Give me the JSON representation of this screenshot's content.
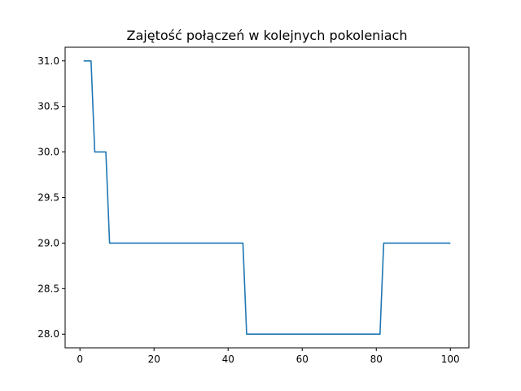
{
  "chart_data": {
    "type": "line",
    "title": "Zajętość połączeń w kolejnych pokoleniach",
    "xlabel": "",
    "ylabel": "",
    "xlim": [
      -4,
      105
    ],
    "ylim": [
      27.85,
      31.15
    ],
    "x_ticks": [
      0,
      20,
      40,
      60,
      80,
      100
    ],
    "y_ticks": [
      28.0,
      28.5,
      29.0,
      29.5,
      30.0,
      30.5,
      31.0
    ],
    "x_tick_labels": [
      "0",
      "20",
      "40",
      "60",
      "80",
      "100"
    ],
    "y_tick_labels": [
      "28.0",
      "28.5",
      "29.0",
      "29.5",
      "30.0",
      "30.5",
      "31.0"
    ],
    "grid": false,
    "line_color": "#1f77b4",
    "series": [
      {
        "x": [
          1,
          2,
          3,
          4,
          5,
          6,
          7,
          8,
          9,
          10,
          11,
          12,
          13,
          14,
          15,
          16,
          17,
          18,
          19,
          20,
          21,
          22,
          23,
          24,
          25,
          26,
          27,
          28,
          29,
          30,
          31,
          32,
          33,
          34,
          35,
          36,
          37,
          38,
          39,
          40,
          41,
          42,
          43,
          44,
          45,
          46,
          47,
          48,
          49,
          50,
          51,
          52,
          53,
          54,
          55,
          56,
          57,
          58,
          59,
          60,
          61,
          62,
          63,
          64,
          65,
          66,
          67,
          68,
          69,
          70,
          71,
          72,
          73,
          74,
          75,
          76,
          77,
          78,
          79,
          80,
          81,
          82,
          83,
          84,
          85,
          86,
          87,
          88,
          89,
          90,
          91,
          92,
          93,
          94,
          95,
          96,
          97,
          98,
          99,
          100
        ],
        "y": [
          31,
          31,
          31,
          30,
          30,
          30,
          30,
          29,
          29,
          29,
          29,
          29,
          29,
          29,
          29,
          29,
          29,
          29,
          29,
          29,
          29,
          29,
          29,
          29,
          29,
          29,
          29,
          29,
          29,
          29,
          29,
          29,
          29,
          29,
          29,
          29,
          29,
          29,
          29,
          29,
          29,
          29,
          29,
          29,
          28,
          28,
          28,
          28,
          28,
          28,
          28,
          28,
          28,
          28,
          28,
          28,
          28,
          28,
          28,
          28,
          28,
          28,
          28,
          28,
          28,
          28,
          28,
          28,
          28,
          28,
          28,
          28,
          28,
          28,
          28,
          28,
          28,
          28,
          28,
          28,
          28,
          29,
          29,
          29,
          29,
          29,
          29,
          29,
          29,
          29,
          29,
          29,
          29,
          29,
          29,
          29,
          29,
          29,
          29,
          29
        ]
      }
    ]
  }
}
